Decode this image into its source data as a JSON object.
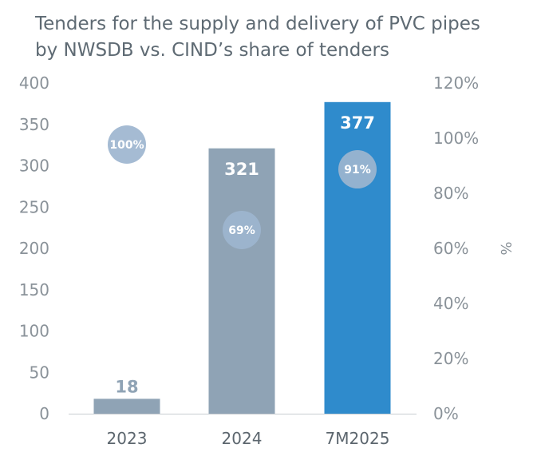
{
  "colors": {
    "bar_2023": "#8fa3b5",
    "bar_2024": "#8fa3b5",
    "bar_7m2025": "#2f8bcc",
    "bubble": "#9db5cf",
    "axis_text": "#8a9299",
    "title_text": "#5e6a73"
  },
  "chart_data": {
    "type": "bar",
    "title_line1": "Tenders for the supply and delivery of PVC pipes",
    "title_line2": "by NWSDB vs. CIND’s share of tenders",
    "categories": [
      "2023",
      "2024",
      "7M2025"
    ],
    "series": [
      {
        "values": [
          18,
          321,
          377
        ],
        "labels": [
          "18",
          "321",
          "377"
        ],
        "axis": "left"
      },
      {
        "values": [
          100,
          69,
          91
        ],
        "labels": [
          "100%",
          "69%",
          "91%"
        ],
        "axis": "right",
        "mark": "bubble"
      }
    ],
    "left_axis": {
      "ylim": [
        0,
        400
      ],
      "ticks": [
        "0",
        "50",
        "100",
        "150",
        "200",
        "250",
        "300",
        "350",
        "400"
      ]
    },
    "right_axis": {
      "label": "%",
      "ylim": [
        0,
        120
      ],
      "ticks": [
        "0%",
        "20%",
        "40%",
        "60%",
        "80%",
        "100%",
        "120%"
      ]
    },
    "grid": false
  }
}
